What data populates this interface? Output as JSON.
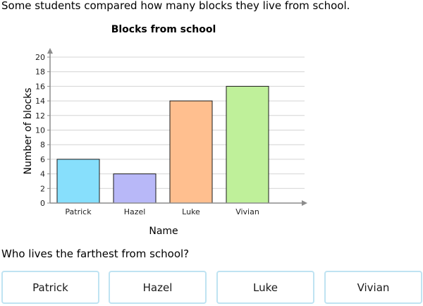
{
  "prompt": "Some students compared how many blocks they live from school.",
  "question": "Who lives the farthest from school?",
  "answers": [
    "Patrick",
    "Hazel",
    "Luke",
    "Vivian"
  ],
  "colors": {
    "bars": [
      "#87dffc",
      "#b8b8f8",
      "#ffbf8f",
      "#bff09a"
    ],
    "grid": "#d4d4d4",
    "axis": "#8c8c8c",
    "answer_border": "#bfe3f2"
  },
  "chart_data": {
    "type": "bar",
    "title": "Blocks from school",
    "xlabel": "Name",
    "ylabel": "Number of blocks",
    "categories": [
      "Patrick",
      "Hazel",
      "Luke",
      "Vivian"
    ],
    "values": [
      6,
      4,
      14,
      16
    ],
    "ylim": [
      0,
      20
    ],
    "yticks": [
      0,
      2,
      4,
      6,
      8,
      10,
      12,
      14,
      16,
      18,
      20
    ],
    "grid": true,
    "legend": "none"
  }
}
